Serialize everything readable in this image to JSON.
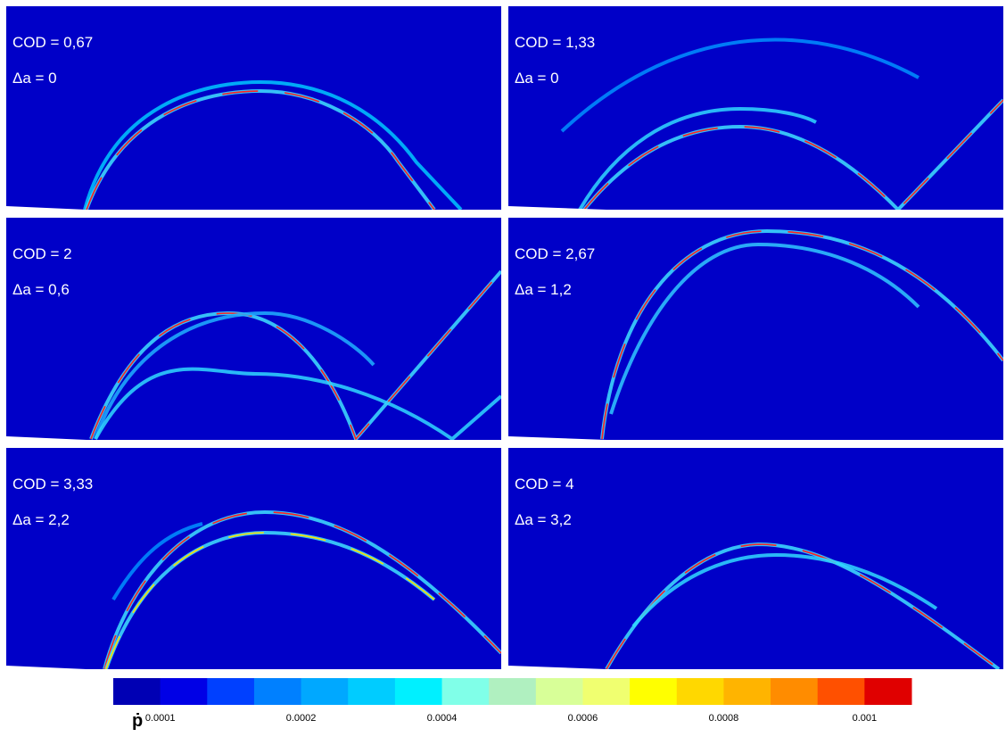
{
  "panels": [
    {
      "cod": "COD = 0,67",
      "da": "Δa = 0"
    },
    {
      "cod": "COD = 1,33",
      "da": "Δa = 0"
    },
    {
      "cod": "COD = 2",
      "da": "Δa = 0,6"
    },
    {
      "cod": "COD = 2,67",
      "da": "Δa = 1,2"
    },
    {
      "cod": "COD = 3,33",
      "da": "Δa = 2,2"
    },
    {
      "cod": "COD = 4",
      "da": "Δa = 3,2"
    }
  ],
  "colorbar": {
    "label": "ṗ",
    "colors": [
      "#0000b4",
      "#0000e6",
      "#0040ff",
      "#0080ff",
      "#00a8ff",
      "#00ccff",
      "#00f0ff",
      "#80ffe8",
      "#b0f0c0",
      "#d8ff98",
      "#f0ff70",
      "#ffff00",
      "#ffd800",
      "#ffb400",
      "#ff8c00",
      "#ff5000",
      "#e00000"
    ],
    "ticks": [
      "0.0001",
      "0.0002",
      "0.0004",
      "0.0006",
      "0.0008",
      "0.001"
    ]
  }
}
